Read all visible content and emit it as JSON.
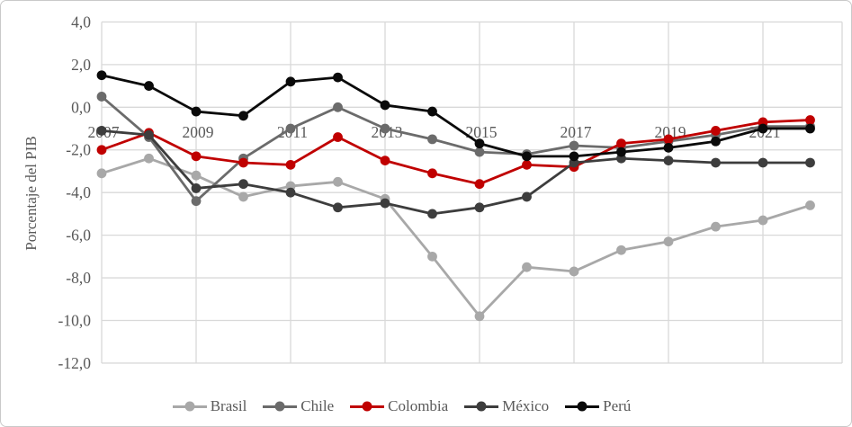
{
  "chart_data": {
    "type": "line",
    "title": "",
    "xlabel": "",
    "ylabel": "Porcentaje del PIB",
    "grid": true,
    "legend_position": "bottom",
    "ylim": [
      -12,
      4
    ],
    "y_ticks": [
      {
        "label": "4,0",
        "value": 4
      },
      {
        "label": "2,0",
        "value": 2
      },
      {
        "label": "0,0",
        "value": 0
      },
      {
        "label": "-2,0",
        "value": -2
      },
      {
        "label": "-4,0",
        "value": -4
      },
      {
        "label": "-6,0",
        "value": -6
      },
      {
        "label": "-8,0",
        "value": -8
      },
      {
        "label": "-10,0",
        "value": -10
      },
      {
        "label": "-12,0",
        "value": -12
      }
    ],
    "x": [
      2007,
      2008,
      2009,
      2010,
      2011,
      2012,
      2013,
      2014,
      2015,
      2016,
      2017,
      2018,
      2019,
      2020,
      2021,
      2022
    ],
    "x_ticks": [
      {
        "label": "2007",
        "value": 2007
      },
      {
        "label": "2009",
        "value": 2009
      },
      {
        "label": "2011",
        "value": 2011
      },
      {
        "label": "2013",
        "value": 2013
      },
      {
        "label": "2015",
        "value": 2015
      },
      {
        "label": "2017",
        "value": 2017
      },
      {
        "label": "2019",
        "value": 2019
      },
      {
        "label": "2021",
        "value": 2021
      }
    ],
    "series": [
      {
        "name": "Brasil",
        "color": "#a8a8a8",
        "values": [
          -3.1,
          -2.4,
          -3.2,
          -4.2,
          -3.7,
          -3.5,
          -4.3,
          -7.0,
          -9.8,
          -7.5,
          -7.7,
          -6.7,
          -6.3,
          -5.6,
          -5.3,
          -4.6
        ]
      },
      {
        "name": "Chile",
        "color": "#6b6b6b",
        "values": [
          0.5,
          -1.4,
          -4.4,
          -2.4,
          -1.0,
          0.0,
          -1.0,
          -1.5,
          -2.1,
          -2.2,
          -1.8,
          -1.9,
          -1.6,
          -1.3,
          -0.9,
          -0.9
        ]
      },
      {
        "name": "Colombia",
        "color": "#c00000",
        "values": [
          -2.0,
          -1.2,
          -2.3,
          -2.6,
          -2.7,
          -1.4,
          -2.5,
          -3.1,
          -3.6,
          -2.7,
          -2.8,
          -1.7,
          -1.5,
          -1.1,
          -0.7,
          -0.6
        ]
      },
      {
        "name": "México",
        "color": "#3d3d3d",
        "values": [
          -1.1,
          -1.3,
          -3.8,
          -3.6,
          -4.0,
          -4.7,
          -4.5,
          -5.0,
          -4.7,
          -4.2,
          -2.6,
          -2.4,
          -2.5,
          -2.6,
          -2.6,
          -2.6
        ]
      },
      {
        "name": "Perú",
        "color": "#0a0a0a",
        "values": [
          1.5,
          1.0,
          -0.2,
          -0.4,
          1.2,
          1.4,
          0.1,
          -0.2,
          -1.7,
          -2.3,
          -2.3,
          -2.1,
          -1.9,
          -1.6,
          -1.0,
          -1.0
        ]
      }
    ],
    "gridline_color": "#d9d9d9",
    "text_color": "#595959"
  }
}
